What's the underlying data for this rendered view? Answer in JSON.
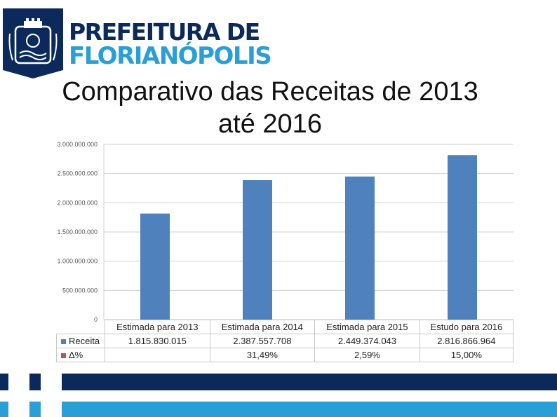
{
  "logo": {
    "line1": "PREFEITURA DE",
    "line2": "FLORIANÓPOLIS"
  },
  "title": {
    "line1": "Comparativo das Receitas de 2013",
    "line2": "até 2016"
  },
  "colors": {
    "bar": "#4f81bd",
    "delta": "#c0504d",
    "navy": "#0b2a5b",
    "cyan": "#2a9fd6",
    "grid": "#d0d0d0"
  },
  "chart_data": {
    "type": "bar",
    "categories": [
      "Estimada para 2013",
      "Estimada para 2014",
      "Estimada para 2015",
      "Estudo para 2016"
    ],
    "series": [
      {
        "name": "Receita",
        "values": [
          1815830015,
          2387557708,
          2449374043,
          2816866964
        ]
      },
      {
        "name": "Δ%",
        "values": [
          null,
          31.49,
          2.59,
          15.0
        ]
      }
    ],
    "ylim": [
      0,
      3000000000
    ],
    "yticks": [
      {
        "value": 0,
        "label": "0"
      },
      {
        "value": 500000000,
        "label": "500.000.000"
      },
      {
        "value": 1000000000,
        "label": "1.000.000.000"
      },
      {
        "value": 1500000000,
        "label": "1.500.000.000"
      },
      {
        "value": 2000000000,
        "label": "2.000.000.000"
      },
      {
        "value": 2500000000,
        "label": "2.500.000.000"
      },
      {
        "value": 3000000000,
        "label": "3.000.000.000"
      }
    ],
    "grid": true,
    "legend": "data-table-bottom",
    "table": {
      "headers": [
        "Estimada para 2013",
        "Estimada para 2014",
        "Estimada para 2015",
        "Estudo para 2016"
      ],
      "rows": [
        {
          "label": "Receita",
          "values": [
            "1.815.830.015",
            "2.387.557.708",
            "2.449.374.043",
            "2.816.866.964"
          ]
        },
        {
          "label": "Δ%",
          "values": [
            "",
            "31,49%",
            "2,59%",
            "15,00%"
          ]
        }
      ]
    }
  }
}
